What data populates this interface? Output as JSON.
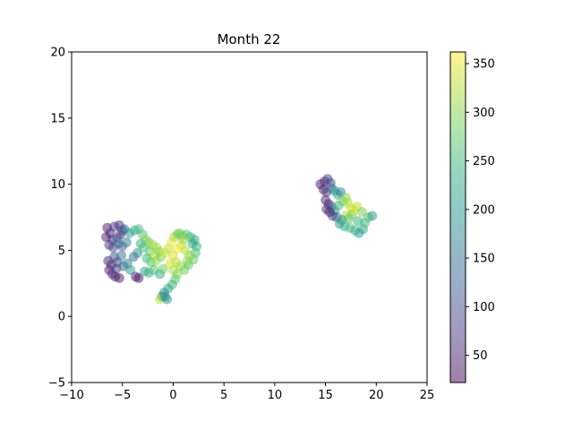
{
  "chart_data": {
    "type": "scatter",
    "title": "Month 22",
    "xlabel": "",
    "ylabel": "",
    "xlim": [
      -10,
      25
    ],
    "ylim": [
      -5,
      20
    ],
    "xticks": [
      -10,
      -5,
      0,
      5,
      10,
      15,
      20,
      25
    ],
    "yticks": [
      -5,
      0,
      5,
      10,
      15,
      20
    ],
    "xtick_labels": [
      "−10",
      "−5",
      "0",
      "5",
      "10",
      "15",
      "20",
      "25"
    ],
    "ytick_labels": [
      "−5",
      "0",
      "5",
      "10",
      "15",
      "20"
    ],
    "grid": false,
    "colorbar": {
      "colormap": "viridis",
      "alpha": 0.5,
      "range": [
        22,
        362
      ],
      "ticks": [
        50,
        100,
        150,
        200,
        250,
        300,
        350
      ],
      "tick_labels": [
        "50",
        "100",
        "150",
        "200",
        "250",
        "300",
        "350"
      ]
    },
    "clusters": [
      {
        "points": [
          [
            -6.5,
            6.7,
            40
          ],
          [
            -6.2,
            6.3,
            55
          ],
          [
            -5.8,
            6.8,
            70
          ],
          [
            -5.3,
            6.9,
            60
          ],
          [
            -5.0,
            6.5,
            90
          ],
          [
            -6.6,
            6.0,
            45
          ],
          [
            -6.0,
            5.8,
            80
          ],
          [
            -5.5,
            5.9,
            110
          ],
          [
            -5.2,
            6.2,
            75
          ],
          [
            -4.8,
            6.6,
            130
          ],
          [
            -6.3,
            5.4,
            65
          ],
          [
            -5.9,
            5.2,
            95
          ],
          [
            -5.4,
            5.5,
            140
          ],
          [
            -5.0,
            5.3,
            120
          ],
          [
            -4.6,
            5.6,
            160
          ],
          [
            -6.4,
            4.2,
            50
          ],
          [
            -6.1,
            3.9,
            70
          ],
          [
            -5.8,
            4.5,
            100
          ],
          [
            -5.5,
            4.1,
            85
          ],
          [
            -5.1,
            4.6,
            150
          ],
          [
            -6.3,
            3.5,
            45
          ],
          [
            -6.0,
            3.2,
            60
          ],
          [
            -5.7,
            3.0,
            55
          ],
          [
            -5.3,
            2.9,
            40
          ],
          [
            -5.6,
            3.6,
            90
          ],
          [
            -4.9,
            3.8,
            130
          ],
          [
            -4.5,
            4.0,
            170
          ],
          [
            -4.2,
            3.5,
            200
          ],
          [
            -3.7,
            3.0,
            60
          ],
          [
            -3.4,
            2.9,
            30
          ],
          [
            -3.9,
            4.5,
            150
          ],
          [
            -3.5,
            4.8,
            180
          ],
          [
            -4.3,
            6.3,
            200
          ],
          [
            -3.8,
            6.5,
            230
          ],
          [
            -3.4,
            6.6,
            250
          ],
          [
            -3.0,
            6.2,
            270
          ],
          [
            -2.7,
            5.8,
            300
          ],
          [
            -3.2,
            5.5,
            240
          ],
          [
            -2.9,
            5.2,
            260
          ],
          [
            -2.4,
            5.6,
            290
          ],
          [
            -2.0,
            5.4,
            310
          ],
          [
            -1.6,
            5.2,
            320
          ],
          [
            -2.3,
            4.9,
            280
          ],
          [
            -1.8,
            4.6,
            330
          ],
          [
            -1.4,
            4.9,
            300
          ],
          [
            -2.6,
            4.4,
            250
          ],
          [
            -2.2,
            4.1,
            270
          ],
          [
            -1.7,
            4.2,
            310
          ],
          [
            -1.2,
            4.5,
            290
          ],
          [
            -0.8,
            4.8,
            340
          ],
          [
            -2.8,
            3.4,
            220
          ],
          [
            -2.4,
            3.3,
            240
          ],
          [
            -1.9,
            3.5,
            260
          ],
          [
            -1.3,
            3.2,
            230
          ],
          [
            -1.0,
            3.6,
            280
          ],
          [
            -0.5,
            5.1,
            330
          ],
          [
            -0.2,
            5.6,
            350
          ],
          [
            0.1,
            6.0,
            320
          ],
          [
            0.4,
            6.2,
            300
          ],
          [
            0.9,
            6.1,
            290
          ],
          [
            1.3,
            6.2,
            270
          ],
          [
            1.7,
            6.0,
            250
          ],
          [
            2.1,
            5.8,
            230
          ],
          [
            2.3,
            5.3,
            240
          ],
          [
            2.2,
            4.8,
            260
          ],
          [
            2.0,
            4.3,
            280
          ],
          [
            1.6,
            4.6,
            300
          ],
          [
            1.2,
            5.0,
            320
          ],
          [
            0.8,
            5.4,
            340
          ],
          [
            0.4,
            5.1,
            355
          ],
          [
            0.0,
            4.6,
            345
          ],
          [
            0.3,
            4.1,
            330
          ],
          [
            0.7,
            3.8,
            310
          ],
          [
            1.1,
            3.5,
            290
          ],
          [
            1.5,
            3.9,
            275
          ],
          [
            -0.3,
            4.0,
            340
          ],
          [
            0.0,
            3.5,
            320
          ],
          [
            0.4,
            3.2,
            300
          ],
          [
            0.2,
            2.8,
            270
          ],
          [
            -0.1,
            2.4,
            250
          ],
          [
            -0.5,
            2.1,
            220
          ],
          [
            -0.9,
            1.8,
            180
          ],
          [
            -1.1,
            1.5,
            150
          ],
          [
            -1.3,
            1.3,
            330
          ],
          [
            -0.8,
            1.5,
            210
          ],
          [
            -0.6,
            1.3,
            190
          ],
          [
            0.6,
            6.3,
            280
          ],
          [
            1.0,
            5.8,
            310
          ],
          [
            1.9,
            5.5,
            220
          ],
          [
            1.4,
            4.2,
            300
          ]
        ]
      },
      {
        "points": [
          [
            14.5,
            10.0,
            40
          ],
          [
            14.9,
            10.2,
            60
          ],
          [
            15.2,
            10.4,
            80
          ],
          [
            15.5,
            10.1,
            100
          ],
          [
            14.8,
            9.6,
            50
          ],
          [
            15.1,
            9.4,
            70
          ],
          [
            15.6,
            9.7,
            130
          ],
          [
            15.9,
            9.5,
            200
          ],
          [
            16.2,
            9.2,
            230
          ],
          [
            16.5,
            9.4,
            160
          ],
          [
            15.0,
            8.8,
            60
          ],
          [
            15.3,
            8.5,
            45
          ],
          [
            15.1,
            8.1,
            55
          ],
          [
            15.6,
            8.3,
            120
          ],
          [
            15.9,
            8.0,
            190
          ],
          [
            16.3,
            8.4,
            250
          ],
          [
            16.7,
            8.7,
            280
          ],
          [
            17.0,
            9.0,
            300
          ],
          [
            17.2,
            8.6,
            320
          ],
          [
            17.5,
            8.2,
            340
          ],
          [
            17.8,
            8.0,
            350
          ],
          [
            18.1,
            8.3,
            330
          ],
          [
            17.6,
            7.7,
            300
          ],
          [
            17.3,
            7.4,
            270
          ],
          [
            17.0,
            7.6,
            310
          ],
          [
            16.6,
            7.3,
            220
          ],
          [
            16.1,
            7.5,
            150
          ],
          [
            15.7,
            7.6,
            90
          ],
          [
            16.4,
            7.0,
            180
          ],
          [
            16.9,
            6.8,
            240
          ],
          [
            17.4,
            6.7,
            260
          ],
          [
            17.9,
            6.5,
            230
          ],
          [
            18.3,
            6.3,
            210
          ],
          [
            18.7,
            6.6,
            220
          ],
          [
            18.9,
            7.1,
            250
          ],
          [
            19.2,
            7.5,
            270
          ],
          [
            19.6,
            7.6,
            200
          ],
          [
            18.6,
            7.9,
            290
          ],
          [
            18.2,
            7.2,
            240
          ],
          [
            15.4,
            7.9,
            50
          ]
        ]
      }
    ]
  }
}
